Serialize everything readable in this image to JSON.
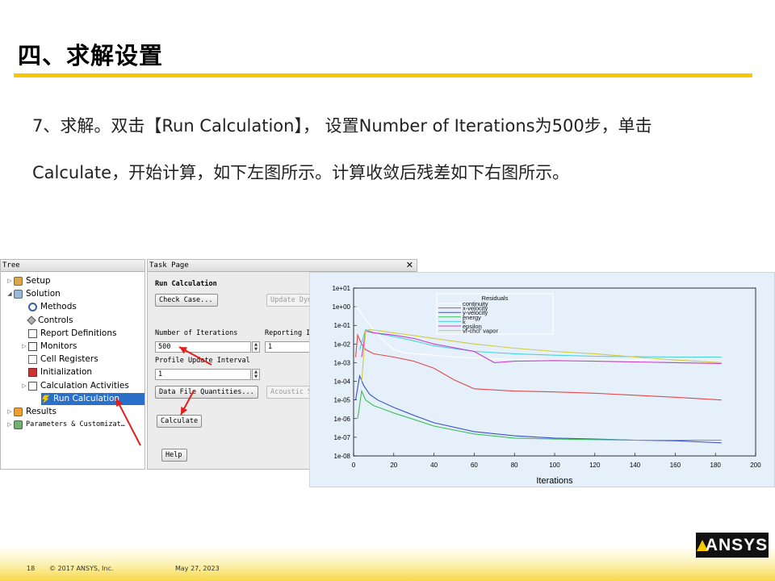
{
  "slide": {
    "title": "四、求解设置",
    "line1": "7、求解。双击【Run Calculation】， 设置Number of Iterations为500步，单击",
    "line2": "Calculate，开始计算，如下左图所示。计算收敛后残差如下右图所示。"
  },
  "tree": {
    "header": "Tree",
    "items": [
      {
        "label": "Setup",
        "icon": "setup-icon",
        "expander": "▷",
        "indent": 0
      },
      {
        "label": "Solution",
        "icon": "solution-icon",
        "expander": "◢",
        "indent": 0
      },
      {
        "label": "Methods",
        "icon": "methods-icon",
        "expander": "",
        "indent": 1
      },
      {
        "label": "Controls",
        "icon": "controls-icon",
        "expander": "",
        "indent": 1
      },
      {
        "label": "Report Definitions",
        "icon": "report-definitions-icon",
        "expander": "",
        "indent": 1
      },
      {
        "label": "Monitors",
        "icon": "monitors-icon",
        "expander": "▷",
        "indent": 1
      },
      {
        "label": "Cell Registers",
        "icon": "cell-registers-icon",
        "expander": "",
        "indent": 1
      },
      {
        "label": "Initialization",
        "icon": "initialization-icon",
        "expander": "",
        "indent": 1
      },
      {
        "label": "Calculation Activities",
        "icon": "calculation-activities-icon",
        "expander": "▷",
        "indent": 1
      },
      {
        "label": "Run Calculation",
        "icon": "lightning-icon",
        "expander": "",
        "indent": 1,
        "selected": true
      },
      {
        "label": "Results",
        "icon": "results-icon",
        "expander": "▷",
        "indent": 0
      },
      {
        "label": "Parameters & Customizat…",
        "icon": "parameters-icon",
        "expander": "▷",
        "indent": 0
      }
    ]
  },
  "task": {
    "header": "Task Page",
    "close_glyph": "✕",
    "section_title": "Run Calculation",
    "check_case": "Check Case...",
    "update_dynamic": "Update Dyn",
    "iterations_label": "Number of Iterations",
    "iterations_value": "500",
    "reporting_label": "Reporting I",
    "reporting_value": "1",
    "profile_label": "Profile Update Interval",
    "profile_value": "1",
    "data_file_quantities": "Data File Quantities...",
    "acoustic": "Acoustic S",
    "calculate": "Calculate",
    "help": "Help"
  },
  "colors": {
    "accent_yellow": "#f5c800",
    "selection_blue": "#2b6fc9",
    "arrow_red": "#e0201e"
  },
  "chart_data": {
    "type": "line",
    "title": "",
    "xlabel": "Iterations",
    "ylabel": "",
    "xlim": [
      0,
      200
    ],
    "ylim": [
      1e-08,
      10
    ],
    "yscale": "log",
    "xticks": [
      0,
      20,
      40,
      60,
      80,
      100,
      120,
      140,
      160,
      180,
      200
    ],
    "yticks": [
      "1e-08",
      "1e-07",
      "1e-06",
      "1e-05",
      "1e-04",
      "1e-03",
      "1e-02",
      "1e-01",
      "1e+00",
      "1e+01"
    ],
    "legend_title": "Residuals",
    "legend_position": "top-center",
    "series": [
      {
        "name": "continuity",
        "color": "#ffffff",
        "x": [
          1,
          3,
          6,
          10,
          15,
          20,
          25,
          30,
          40,
          50,
          60,
          80,
          100,
          120,
          140,
          160,
          183
        ],
        "y": [
          1,
          0.6,
          0.2,
          0.06,
          0.015,
          0.005,
          0.0035,
          0.003,
          0.0025,
          0.002,
          0.0018,
          0.0015,
          0.0014,
          0.0013,
          0.0014,
          0.0017,
          0.0018
        ]
      },
      {
        "name": "x-velocity",
        "color": "#e04a4a",
        "x": [
          1,
          2,
          4,
          6,
          10,
          20,
          30,
          40,
          50,
          60,
          80,
          100,
          120,
          140,
          160,
          183
        ],
        "y": [
          0.002,
          0.03,
          0.01,
          0.005,
          0.003,
          0.002,
          0.0012,
          0.0005,
          0.00012,
          4e-05,
          3e-05,
          2.7e-05,
          2.3e-05,
          1.8e-05,
          1.4e-05,
          1e-05
        ]
      },
      {
        "name": "y-velocity",
        "color": "#3a4fd0",
        "x": [
          1,
          3,
          5,
          8,
          12,
          20,
          30,
          40,
          60,
          80,
          100,
          120,
          140,
          160,
          183
        ],
        "y": [
          1e-05,
          0.0002,
          6e-05,
          2e-05,
          1e-05,
          4e-06,
          1.5e-06,
          6e-07,
          2e-07,
          1.2e-07,
          9e-08,
          8e-08,
          7e-08,
          6.5e-08,
          5e-08
        ]
      },
      {
        "name": "energy",
        "color": "#3cbf5a",
        "x": [
          2,
          4,
          6,
          10,
          20,
          30,
          40,
          60,
          80,
          100,
          120,
          140,
          160,
          183
        ],
        "y": [
          1e-06,
          3e-05,
          1e-05,
          5e-06,
          2e-06,
          9e-07,
          4e-07,
          1.5e-07,
          9e-08,
          8e-08,
          7.5e-08,
          7e-08,
          7e-08,
          7e-08
        ]
      },
      {
        "name": "k",
        "color": "#46d2dc",
        "x": [
          3,
          6,
          10,
          20,
          30,
          40,
          60,
          80,
          100,
          120,
          140,
          160,
          183
        ],
        "y": [
          0.005,
          0.06,
          0.04,
          0.025,
          0.015,
          0.008,
          0.004,
          0.003,
          0.0025,
          0.0022,
          0.0021,
          0.002,
          0.002
        ]
      },
      {
        "name": "epsilon",
        "color": "#c83cc8",
        "x": [
          4,
          6,
          10,
          20,
          30,
          40,
          60,
          70,
          80,
          100,
          120,
          140,
          160,
          183
        ],
        "y": [
          0.002,
          0.05,
          0.04,
          0.03,
          0.02,
          0.01,
          0.004,
          0.001,
          0.0012,
          0.0013,
          0.0012,
          0.0011,
          0.001,
          0.0009
        ]
      },
      {
        "name": "vf-chcl' vapor",
        "color": "#d0cc40",
        "x": [
          4,
          6,
          8,
          20,
          40,
          60,
          80,
          100,
          120,
          140,
          160,
          183
        ],
        "y": [
          0.0001,
          0.05,
          0.06,
          0.04,
          0.02,
          0.01,
          0.006,
          0.004,
          0.003,
          0.002,
          0.0014,
          0.001
        ]
      }
    ]
  },
  "footer": {
    "page_number": "18",
    "copyright": "© 2017 ANSYS, Inc.",
    "date": "May 27, 2023",
    "logo": "ANSYS"
  }
}
